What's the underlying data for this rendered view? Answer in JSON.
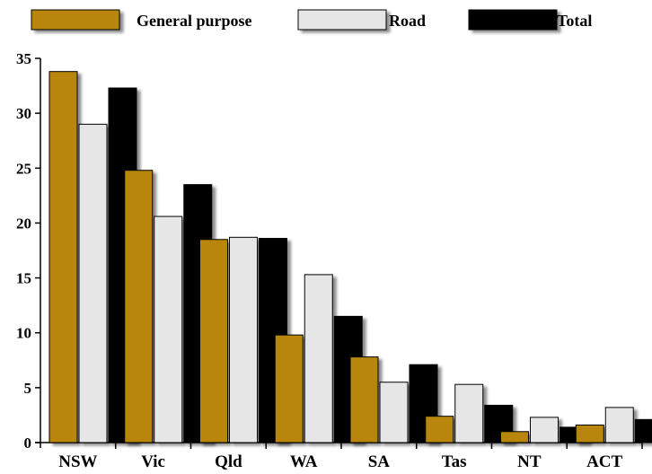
{
  "chart_data": {
    "type": "bar",
    "categories": [
      "NSW",
      "Vic",
      "Qld",
      "WA",
      "SA",
      "Tas",
      "NT",
      "ACT"
    ],
    "series": [
      {
        "name": "General purpose",
        "color": "#b8860b",
        "values": [
          33.8,
          24.8,
          18.5,
          9.8,
          7.8,
          2.4,
          1.0,
          1.6
        ]
      },
      {
        "name": "Road",
        "color": "#e6e6e6",
        "values": [
          29.0,
          20.6,
          18.7,
          15.3,
          5.5,
          5.3,
          2.3,
          3.2
        ]
      },
      {
        "name": "Total",
        "color": "#000000",
        "values": [
          32.3,
          23.5,
          18.6,
          11.5,
          7.1,
          3.4,
          1.4,
          2.1
        ]
      }
    ],
    "ylim": [
      0,
      35
    ],
    "yticks": [
      0,
      5,
      10,
      15,
      20,
      25,
      30,
      35
    ],
    "title": "",
    "xlabel": "",
    "ylabel": "",
    "legend_position": "top",
    "grid": false
  }
}
